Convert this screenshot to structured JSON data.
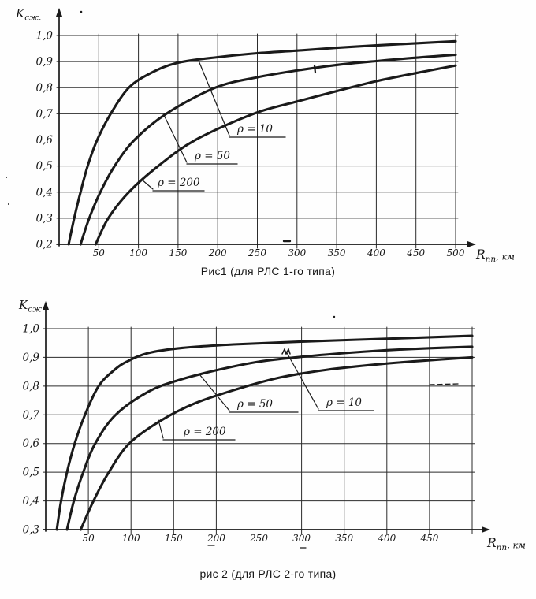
{
  "colors": {
    "paper": "#fefefe",
    "ink": "#1a1a1a"
  },
  "chart_data": [
    {
      "type": "line",
      "title": "Рис1 (для РЛС 1-го типа)",
      "ylabel": "Kсж.",
      "ylabel_base": "K",
      "ylabel_sub": "сж.",
      "xlabel": "Rпп, км",
      "xlabel_base": "R",
      "xlabel_sub": "пп",
      "xlabel_rest": ", км",
      "xlim": [
        0,
        500
      ],
      "ylim": [
        0.2,
        1.0
      ],
      "grid": true,
      "x_tick_values": [
        50,
        100,
        150,
        200,
        250,
        300,
        350,
        400,
        450,
        500
      ],
      "x_tick_labels": [
        "50",
        "100",
        "150",
        "200",
        "250",
        "300",
        "350",
        "400",
        "450",
        "500"
      ],
      "y_tick_values": [
        1.0,
        0.9,
        0.8,
        0.7,
        0.6,
        0.5,
        0.4,
        0.3,
        0.2
      ],
      "y_tick_labels": [
        "1,0",
        "0,9",
        "0,8",
        "0,7",
        "0,6",
        "0,5",
        "0,4",
        "0,3",
        "0,2"
      ],
      "series": [
        {
          "name": "ρ = 10",
          "points": [
            [
              12,
              0.2
            ],
            [
              19,
              0.3
            ],
            [
              27,
              0.4
            ],
            [
              36,
              0.5
            ],
            [
              48,
              0.6
            ],
            [
              65,
              0.7
            ],
            [
              88,
              0.8
            ],
            [
              115,
              0.855
            ],
            [
              149,
              0.895
            ],
            [
              200,
              0.917
            ],
            [
              250,
              0.932
            ],
            [
              300,
              0.942
            ],
            [
              350,
              0.953
            ],
            [
              400,
              0.962
            ],
            [
              450,
              0.97
            ],
            [
              500,
              0.978
            ]
          ]
        },
        {
          "name": "ρ = 50",
          "points": [
            [
              27,
              0.2
            ],
            [
              38,
              0.3
            ],
            [
              52,
              0.4
            ],
            [
              70,
              0.5
            ],
            [
              95,
              0.6
            ],
            [
              135,
              0.7
            ],
            [
              197,
              0.8
            ],
            [
              250,
              0.84
            ],
            [
              300,
              0.866
            ],
            [
              350,
              0.887
            ],
            [
              400,
              0.902
            ],
            [
              450,
              0.915
            ],
            [
              500,
              0.926
            ]
          ]
        },
        {
          "name": "ρ = 200",
          "points": [
            [
              46,
              0.2
            ],
            [
              62,
              0.3
            ],
            [
              88,
              0.4
            ],
            [
              125,
              0.5
            ],
            [
              172,
              0.6
            ],
            [
              245,
              0.7
            ],
            [
              300,
              0.747
            ],
            [
              350,
              0.787
            ],
            [
              400,
              0.825
            ],
            [
              450,
              0.856
            ],
            [
              500,
              0.885
            ]
          ]
        }
      ]
    },
    {
      "type": "line",
      "title": "рис 2 (для РЛС 2-го типа)",
      "ylabel": "Kсж",
      "ylabel_base": "K",
      "ylabel_sub": "сж",
      "xlabel": "Rпп, км",
      "xlabel_base": "R",
      "xlabel_sub": "пп",
      "xlabel_rest": ", км",
      "xlim": [
        0,
        500
      ],
      "ylim": [
        0.3,
        1.0
      ],
      "grid": true,
      "x_tick_values": [
        50,
        100,
        150,
        200,
        250,
        300,
        350,
        400,
        450
      ],
      "x_tick_labels": [
        "50",
        "100",
        "150",
        "200",
        "250",
        "300",
        "350",
        "400",
        "450"
      ],
      "y_tick_values": [
        1.0,
        0.9,
        0.8,
        0.7,
        0.6,
        0.5,
        0.4,
        0.3
      ],
      "y_tick_labels": [
        "1,0",
        "0,9",
        "0,8",
        "0,7",
        "0,6",
        "0,5",
        "0,4",
        "0,3"
      ],
      "series": [
        {
          "name": "ρ = 10",
          "points": [
            [
              13,
              0.3
            ],
            [
              18,
              0.4
            ],
            [
              25,
              0.5
            ],
            [
              34,
              0.6
            ],
            [
              46,
              0.7
            ],
            [
              62,
              0.8
            ],
            [
              80,
              0.855
            ],
            [
              95,
              0.885
            ],
            [
              120,
              0.915
            ],
            [
              160,
              0.933
            ],
            [
              220,
              0.945
            ],
            [
              300,
              0.955
            ],
            [
              400,
              0.965
            ],
            [
              500,
              0.975
            ]
          ]
        },
        {
          "name": "ρ = 50",
          "points": [
            [
              25,
              0.3
            ],
            [
              33,
              0.4
            ],
            [
              44,
              0.5
            ],
            [
              58,
              0.6
            ],
            [
              82,
              0.7
            ],
            [
              120,
              0.78
            ],
            [
              155,
              0.82
            ],
            [
              200,
              0.855
            ],
            [
              250,
              0.885
            ],
            [
              300,
              0.902
            ],
            [
              350,
              0.915
            ],
            [
              400,
              0.925
            ],
            [
              450,
              0.932
            ],
            [
              500,
              0.937
            ]
          ]
        },
        {
          "name": "ρ = 200",
          "points": [
            [
              41,
              0.3
            ],
            [
              56,
              0.4
            ],
            [
              74,
              0.5
            ],
            [
              98,
              0.6
            ],
            [
              135,
              0.68
            ],
            [
              175,
              0.74
            ],
            [
              225,
              0.79
            ],
            [
              275,
              0.83
            ],
            [
              330,
              0.857
            ],
            [
              390,
              0.876
            ],
            [
              450,
              0.89
            ],
            [
              500,
              0.9
            ]
          ]
        }
      ]
    }
  ]
}
